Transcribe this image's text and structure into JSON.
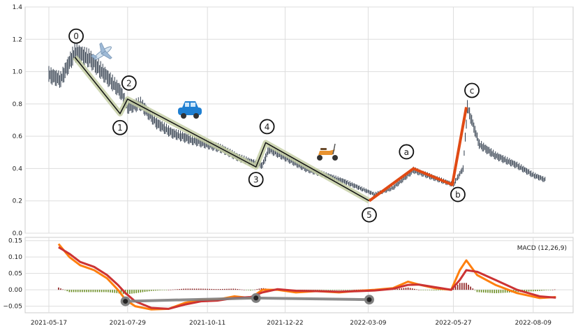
{
  "chart_data": [
    {
      "type": "line",
      "panel": "price",
      "title": "",
      "xlabel": "",
      "ylabel": "",
      "ylim": [
        0,
        1.4
      ],
      "y_ticks": [
        "0.0",
        "0.2",
        "0.4",
        "0.6",
        "0.8",
        "1.0",
        "1.2",
        "1.4"
      ],
      "grid": true,
      "series": [
        {
          "values_shape": "candlestick",
          "x": [
            "2021-05-17",
            "2021-05-28",
            "2021-06-10",
            "2021-06-24",
            "2021-07-08",
            "2021-07-22",
            "2021-07-29",
            "2021-08-10",
            "2021-08-25",
            "2021-09-08",
            "2021-09-25",
            "2021-10-11",
            "2021-10-25",
            "2021-11-08",
            "2021-11-20",
            "2021-12-01",
            "2021-12-07",
            "2021-12-22",
            "2022-01-10",
            "2022-01-28",
            "2022-02-15",
            "2022-03-01",
            "2022-03-15",
            "2022-04-01",
            "2022-04-20",
            "2022-05-10",
            "2022-05-27",
            "2022-06-05",
            "2022-06-09",
            "2022-06-20",
            "2022-07-05",
            "2022-07-25",
            "2022-08-09",
            "2022-08-20"
          ],
          "values": [
            0.98,
            0.95,
            1.12,
            1.08,
            0.98,
            0.88,
            0.78,
            0.8,
            0.68,
            0.62,
            0.58,
            0.55,
            0.52,
            0.47,
            0.44,
            0.42,
            0.52,
            0.47,
            0.4,
            0.36,
            0.32,
            0.28,
            0.24,
            0.28,
            0.39,
            0.34,
            0.3,
            0.4,
            0.78,
            0.55,
            0.48,
            0.42,
            0.36,
            0.33
          ]
        }
      ],
      "wave_points": [
        {
          "label": "0",
          "x": "2021-06-10",
          "y": 1.09
        },
        {
          "label": "1",
          "x": "2021-07-22",
          "y": 0.74
        },
        {
          "label": "2",
          "x": "2021-07-29",
          "y": 0.83
        },
        {
          "label": "3",
          "x": "2021-11-25",
          "y": 0.41
        },
        {
          "label": "4",
          "x": "2021-12-04",
          "y": 0.56
        },
        {
          "label": "5",
          "x": "2022-03-10",
          "y": 0.2
        },
        {
          "label": "a",
          "x": "2022-04-20",
          "y": 0.4
        },
        {
          "label": "b",
          "x": "2022-05-26",
          "y": 0.3
        },
        {
          "label": "c",
          "x": "2022-06-08",
          "y": 0.78
        }
      ],
      "icons": [
        "airplane-icon",
        "car-icon",
        "scooter-icon"
      ],
      "colors": {
        "candle": "#2e3a4a",
        "impulse": "#111111",
        "impulse_band": "#c5cfa6",
        "correction": "#e04a14"
      }
    },
    {
      "type": "line",
      "panel": "macd",
      "legend": "MACD (12,26,9)",
      "legend_position": "top-right",
      "ylim": [
        -0.07,
        0.16
      ],
      "y_ticks": [
        "−0.05",
        "0.00",
        "0.05",
        "0.10",
        "0.15"
      ],
      "x_ticks": [
        "2021-05-17",
        "2021-07-29",
        "2021-10-11",
        "2021-12-22",
        "2022-03-09",
        "2022-05-27",
        "2022-08-09"
      ],
      "grid": true,
      "series": [
        {
          "color": "#ff7f0e",
          "x": [
            "2021-05-26",
            "2021-06-05",
            "2021-06-15",
            "2021-06-28",
            "2021-07-10",
            "2021-07-20",
            "2021-07-27",
            "2021-08-05",
            "2021-08-20",
            "2021-09-05",
            "2021-09-20",
            "2021-10-05",
            "2021-10-20",
            "2021-11-05",
            "2021-11-20",
            "2021-12-01",
            "2021-12-15",
            "2022-01-01",
            "2022-01-20",
            "2022-02-10",
            "2022-03-01",
            "2022-03-15",
            "2022-04-01",
            "2022-04-15",
            "2022-04-25",
            "2022-05-10",
            "2022-05-25",
            "2022-06-02",
            "2022-06-08",
            "2022-06-18",
            "2022-07-05",
            "2022-07-25",
            "2022-08-15",
            "2022-08-30"
          ],
          "values": [
            0.14,
            0.1,
            0.075,
            0.06,
            0.035,
            0.0,
            -0.03,
            -0.05,
            -0.06,
            -0.058,
            -0.04,
            -0.03,
            -0.03,
            -0.02,
            -0.025,
            0.0,
            0.0,
            -0.008,
            -0.004,
            -0.008,
            -0.003,
            0.0,
            0.005,
            0.025,
            0.016,
            0.005,
            0.0,
            0.06,
            0.09,
            0.045,
            0.015,
            -0.01,
            -0.025,
            -0.022
          ]
        },
        {
          "color": "#cc3333",
          "x": [
            "2021-05-26",
            "2021-06-05",
            "2021-06-15",
            "2021-06-28",
            "2021-07-10",
            "2021-07-20",
            "2021-07-27",
            "2021-08-05",
            "2021-08-20",
            "2021-09-05",
            "2021-09-20",
            "2021-10-05",
            "2021-10-20",
            "2021-11-05",
            "2021-11-20",
            "2021-12-01",
            "2021-12-15",
            "2022-01-01",
            "2022-01-20",
            "2022-02-10",
            "2022-03-01",
            "2022-03-15",
            "2022-04-01",
            "2022-04-15",
            "2022-04-25",
            "2022-05-10",
            "2022-05-25",
            "2022-06-02",
            "2022-06-08",
            "2022-06-18",
            "2022-07-05",
            "2022-07-25",
            "2022-08-15",
            "2022-08-30"
          ],
          "values": [
            0.13,
            0.11,
            0.085,
            0.07,
            0.045,
            0.015,
            -0.01,
            -0.035,
            -0.055,
            -0.058,
            -0.045,
            -0.035,
            -0.033,
            -0.025,
            -0.022,
            -0.008,
            0.002,
            -0.003,
            -0.004,
            -0.006,
            -0.004,
            -0.002,
            0.003,
            0.015,
            0.016,
            0.008,
            0.0,
            0.03,
            0.06,
            0.055,
            0.03,
            0.0,
            -0.02,
            -0.024
          ]
        },
        {
          "type": "bar",
          "values_shape": "histogram",
          "colors": {
            "positive": "#8b1a1a",
            "negative": "#6b8e23"
          }
        }
      ],
      "divergence_points": [
        {
          "x": "2021-07-27",
          "y": -0.035
        },
        {
          "x": "2021-11-25",
          "y": -0.025
        },
        {
          "x": "2022-03-10",
          "y": -0.03
        }
      ]
    }
  ]
}
